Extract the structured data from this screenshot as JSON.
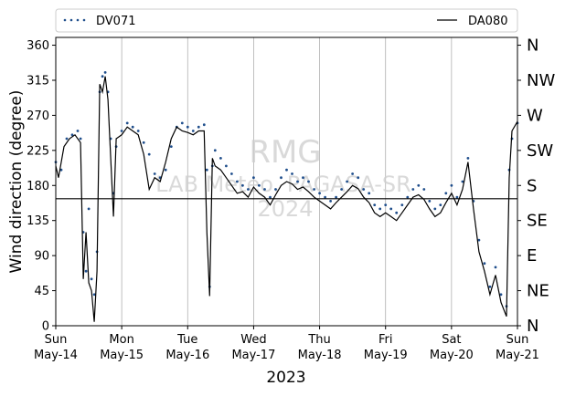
{
  "chart_data": {
    "type": "scatter",
    "xlabel": "2023",
    "ylabel": "Wind direction (degree)",
    "xlim": [
      "2023-05-14 00:00",
      "2023-05-21 00:00"
    ],
    "ylim": [
      0,
      370
    ],
    "yticks": [
      0,
      45,
      90,
      135,
      180,
      225,
      270,
      315,
      360
    ],
    "grid": "vertical",
    "legend": {
      "placement": "top",
      "ncol": 2
    },
    "x_tick_labels": [
      {
        "date": "2023-05-14",
        "day": "Sun",
        "label": "May-14"
      },
      {
        "date": "2023-05-15",
        "day": "Mon",
        "label": "May-15"
      },
      {
        "date": "2023-05-16",
        "day": "Tue",
        "label": "May-16"
      },
      {
        "date": "2023-05-17",
        "day": "Wed",
        "label": "May-17"
      },
      {
        "date": "2023-05-18",
        "day": "Thu",
        "label": "May-18"
      },
      {
        "date": "2023-05-19",
        "day": "Fri",
        "label": "May-19"
      },
      {
        "date": "2023-05-20",
        "day": "Sat",
        "label": "May-20"
      },
      {
        "date": "2023-05-21",
        "day": "Sun",
        "label": "May-21"
      }
    ],
    "compass_labels": [
      {
        "deg": 0,
        "label": "N"
      },
      {
        "deg": 45,
        "label": "NE"
      },
      {
        "deg": 90,
        "label": "E"
      },
      {
        "deg": 135,
        "label": "SE"
      },
      {
        "deg": 180,
        "label": "S"
      },
      {
        "deg": 225,
        "label": "SW"
      },
      {
        "deg": 270,
        "label": "W"
      },
      {
        "deg": 315,
        "label": "NW"
      },
      {
        "deg": 360,
        "label": "N"
      }
    ],
    "hline": {
      "y": 163,
      "color": "#000000"
    },
    "series": [
      {
        "name": "DV071",
        "style": "dots",
        "color": "#1f4e8c",
        "points": [
          [
            "2023-05-14 00:00",
            210
          ],
          [
            "2023-05-14 02:00",
            200
          ],
          [
            "2023-05-14 04:00",
            240
          ],
          [
            "2023-05-14 06:00",
            245
          ],
          [
            "2023-05-14 08:00",
            250
          ],
          [
            "2023-05-14 09:00",
            240
          ],
          [
            "2023-05-14 10:00",
            120
          ],
          [
            "2023-05-14 11:00",
            70
          ],
          [
            "2023-05-14 12:00",
            150
          ],
          [
            "2023-05-14 13:00",
            60
          ],
          [
            "2023-05-14 14:00",
            40
          ],
          [
            "2023-05-14 15:00",
            95
          ],
          [
            "2023-05-14 16:00",
            300
          ],
          [
            "2023-05-14 17:00",
            320
          ],
          [
            "2023-05-14 18:00",
            325
          ],
          [
            "2023-05-14 19:00",
            300
          ],
          [
            "2023-05-14 20:00",
            240
          ],
          [
            "2023-05-14 21:00",
            170
          ],
          [
            "2023-05-14 22:00",
            230
          ],
          [
            "2023-05-15 00:00",
            250
          ],
          [
            "2023-05-15 02:00",
            260
          ],
          [
            "2023-05-15 04:00",
            255
          ],
          [
            "2023-05-15 06:00",
            250
          ],
          [
            "2023-05-15 08:00",
            235
          ],
          [
            "2023-05-15 10:00",
            220
          ],
          [
            "2023-05-15 12:00",
            195
          ],
          [
            "2023-05-15 14:00",
            190
          ],
          [
            "2023-05-15 16:00",
            200
          ],
          [
            "2023-05-15 18:00",
            230
          ],
          [
            "2023-05-15 20:00",
            255
          ],
          [
            "2023-05-15 22:00",
            260
          ],
          [
            "2023-05-16 00:00",
            255
          ],
          [
            "2023-05-16 02:00",
            250
          ],
          [
            "2023-05-16 04:00",
            255
          ],
          [
            "2023-05-16 06:00",
            258
          ],
          [
            "2023-05-16 07:00",
            200
          ],
          [
            "2023-05-16 08:00",
            50
          ],
          [
            "2023-05-16 09:00",
            205
          ],
          [
            "2023-05-16 10:00",
            225
          ],
          [
            "2023-05-16 12:00",
            215
          ],
          [
            "2023-05-16 14:00",
            205
          ],
          [
            "2023-05-16 16:00",
            195
          ],
          [
            "2023-05-16 18:00",
            185
          ],
          [
            "2023-05-16 20:00",
            180
          ],
          [
            "2023-05-16 22:00",
            175
          ],
          [
            "2023-05-17 00:00",
            190
          ],
          [
            "2023-05-17 02:00",
            180
          ],
          [
            "2023-05-17 04:00",
            175
          ],
          [
            "2023-05-17 06:00",
            165
          ],
          [
            "2023-05-17 08:00",
            175
          ],
          [
            "2023-05-17 10:00",
            190
          ],
          [
            "2023-05-17 12:00",
            200
          ],
          [
            "2023-05-17 14:00",
            195
          ],
          [
            "2023-05-17 16:00",
            185
          ],
          [
            "2023-05-17 18:00",
            190
          ],
          [
            "2023-05-17 20:00",
            185
          ],
          [
            "2023-05-17 22:00",
            175
          ],
          [
            "2023-05-18 00:00",
            170
          ],
          [
            "2023-05-18 02:00",
            165
          ],
          [
            "2023-05-18 04:00",
            160
          ],
          [
            "2023-05-18 06:00",
            165
          ],
          [
            "2023-05-18 08:00",
            175
          ],
          [
            "2023-05-18 10:00",
            185
          ],
          [
            "2023-05-18 12:00",
            195
          ],
          [
            "2023-05-18 14:00",
            190
          ],
          [
            "2023-05-18 16:00",
            175
          ],
          [
            "2023-05-18 18:00",
            170
          ],
          [
            "2023-05-18 20:00",
            155
          ],
          [
            "2023-05-18 22:00",
            150
          ],
          [
            "2023-05-19 00:00",
            155
          ],
          [
            "2023-05-19 02:00",
            150
          ],
          [
            "2023-05-19 04:00",
            145
          ],
          [
            "2023-05-19 06:00",
            155
          ],
          [
            "2023-05-19 08:00",
            165
          ],
          [
            "2023-05-19 10:00",
            175
          ],
          [
            "2023-05-19 12:00",
            180
          ],
          [
            "2023-05-19 14:00",
            175
          ],
          [
            "2023-05-19 16:00",
            160
          ],
          [
            "2023-05-19 18:00",
            150
          ],
          [
            "2023-05-19 20:00",
            155
          ],
          [
            "2023-05-19 22:00",
            170
          ],
          [
            "2023-05-20 00:00",
            180
          ],
          [
            "2023-05-20 02:00",
            165
          ],
          [
            "2023-05-20 04:00",
            185
          ],
          [
            "2023-05-20 06:00",
            215
          ],
          [
            "2023-05-20 08:00",
            160
          ],
          [
            "2023-05-20 10:00",
            110
          ],
          [
            "2023-05-20 12:00",
            80
          ],
          [
            "2023-05-20 14:00",
            50
          ],
          [
            "2023-05-20 16:00",
            75
          ],
          [
            "2023-05-20 18:00",
            40
          ],
          [
            "2023-05-20 20:00",
            25
          ],
          [
            "2023-05-20 21:00",
            200
          ],
          [
            "2023-05-20 22:00",
            240
          ],
          [
            "2023-05-21 00:00",
            260
          ]
        ]
      },
      {
        "name": "DA080",
        "style": "line",
        "color": "#000000",
        "points": [
          [
            "2023-05-14 00:00",
            205
          ],
          [
            "2023-05-14 01:00",
            190
          ],
          [
            "2023-05-14 03:00",
            230
          ],
          [
            "2023-05-14 05:00",
            240
          ],
          [
            "2023-05-14 07:00",
            245
          ],
          [
            "2023-05-14 09:00",
            235
          ],
          [
            "2023-05-14 10:00",
            60
          ],
          [
            "2023-05-14 11:00",
            120
          ],
          [
            "2023-05-14 12:00",
            55
          ],
          [
            "2023-05-14 13:00",
            45
          ],
          [
            "2023-05-14 14:00",
            5
          ],
          [
            "2023-05-14 15:00",
            70
          ],
          [
            "2023-05-14 16:00",
            310
          ],
          [
            "2023-05-14 17:00",
            300
          ],
          [
            "2023-05-14 18:00",
            320
          ],
          [
            "2023-05-14 19:00",
            290
          ],
          [
            "2023-05-14 20:00",
            215
          ],
          [
            "2023-05-14 21:00",
            140
          ],
          [
            "2023-05-14 22:00",
            240
          ],
          [
            "2023-05-15 00:00",
            245
          ],
          [
            "2023-05-15 02:00",
            255
          ],
          [
            "2023-05-15 04:00",
            250
          ],
          [
            "2023-05-15 06:00",
            245
          ],
          [
            "2023-05-15 08:00",
            220
          ],
          [
            "2023-05-15 10:00",
            175
          ],
          [
            "2023-05-15 12:00",
            190
          ],
          [
            "2023-05-15 14:00",
            185
          ],
          [
            "2023-05-15 16:00",
            210
          ],
          [
            "2023-05-15 18:00",
            240
          ],
          [
            "2023-05-15 20:00",
            255
          ],
          [
            "2023-05-15 22:00",
            250
          ],
          [
            "2023-05-16 00:00",
            248
          ],
          [
            "2023-05-16 02:00",
            245
          ],
          [
            "2023-05-16 04:00",
            250
          ],
          [
            "2023-05-16 06:00",
            250
          ],
          [
            "2023-05-16 07:00",
            120
          ],
          [
            "2023-05-16 08:00",
            38
          ],
          [
            "2023-05-16 09:00",
            215
          ],
          [
            "2023-05-16 10:00",
            205
          ],
          [
            "2023-05-16 12:00",
            200
          ],
          [
            "2023-05-16 14:00",
            190
          ],
          [
            "2023-05-16 16:00",
            180
          ],
          [
            "2023-05-16 18:00",
            170
          ],
          [
            "2023-05-16 20:00",
            172
          ],
          [
            "2023-05-16 22:00",
            165
          ],
          [
            "2023-05-17 00:00",
            178
          ],
          [
            "2023-05-17 02:00",
            170
          ],
          [
            "2023-05-17 04:00",
            165
          ],
          [
            "2023-05-17 06:00",
            155
          ],
          [
            "2023-05-17 08:00",
            168
          ],
          [
            "2023-05-17 10:00",
            180
          ],
          [
            "2023-05-17 12:00",
            185
          ],
          [
            "2023-05-17 14:00",
            182
          ],
          [
            "2023-05-17 16:00",
            175
          ],
          [
            "2023-05-17 18:00",
            178
          ],
          [
            "2023-05-17 20:00",
            172
          ],
          [
            "2023-05-17 22:00",
            165
          ],
          [
            "2023-05-18 00:00",
            160
          ],
          [
            "2023-05-18 02:00",
            155
          ],
          [
            "2023-05-18 04:00",
            150
          ],
          [
            "2023-05-18 06:00",
            158
          ],
          [
            "2023-05-18 08:00",
            165
          ],
          [
            "2023-05-18 10:00",
            172
          ],
          [
            "2023-05-18 12:00",
            180
          ],
          [
            "2023-05-18 14:00",
            176
          ],
          [
            "2023-05-18 16:00",
            165
          ],
          [
            "2023-05-18 18:00",
            158
          ],
          [
            "2023-05-18 20:00",
            145
          ],
          [
            "2023-05-18 22:00",
            140
          ],
          [
            "2023-05-19 00:00",
            145
          ],
          [
            "2023-05-19 02:00",
            140
          ],
          [
            "2023-05-19 04:00",
            135
          ],
          [
            "2023-05-19 06:00",
            145
          ],
          [
            "2023-05-19 08:00",
            155
          ],
          [
            "2023-05-19 10:00",
            165
          ],
          [
            "2023-05-19 12:00",
            168
          ],
          [
            "2023-05-19 14:00",
            162
          ],
          [
            "2023-05-19 16:00",
            150
          ],
          [
            "2023-05-19 18:00",
            140
          ],
          [
            "2023-05-19 20:00",
            145
          ],
          [
            "2023-05-19 22:00",
            158
          ],
          [
            "2023-05-20 00:00",
            170
          ],
          [
            "2023-05-20 02:00",
            155
          ],
          [
            "2023-05-20 04:00",
            175
          ],
          [
            "2023-05-20 06:00",
            210
          ],
          [
            "2023-05-20 08:00",
            150
          ],
          [
            "2023-05-20 10:00",
            95
          ],
          [
            "2023-05-20 12:00",
            70
          ],
          [
            "2023-05-20 14:00",
            40
          ],
          [
            "2023-05-20 16:00",
            65
          ],
          [
            "2023-05-20 18:00",
            30
          ],
          [
            "2023-05-20 20:00",
            12
          ],
          [
            "2023-05-20 21:00",
            190
          ],
          [
            "2023-05-20 22:00",
            250
          ],
          [
            "2023-05-21 00:00",
            262
          ]
        ]
      }
    ],
    "watermark": [
      "RMG",
      "LAB Meteo. PAGASA-SR",
      "2024"
    ]
  }
}
